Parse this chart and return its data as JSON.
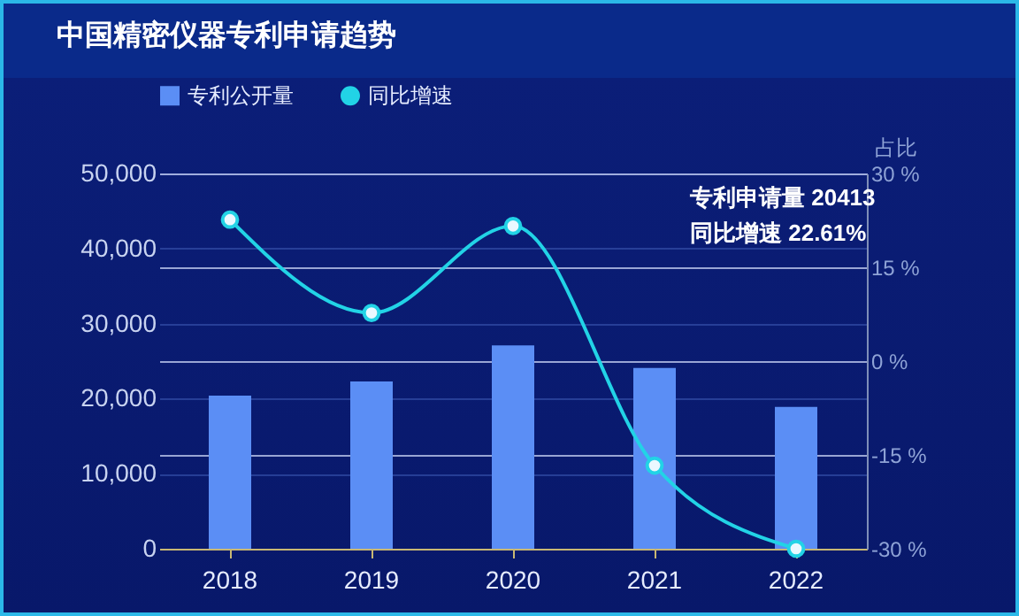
{
  "chart_data": {
    "type": "bar",
    "title": "中国精密仪器专利申请趋势",
    "categories": [
      "2018",
      "2019",
      "2020",
      "2021",
      "2022"
    ],
    "series": [
      {
        "name": "专利公开量",
        "color": "#5b8ef5",
        "values": [
          20413,
          22300,
          27100,
          24100,
          18900
        ]
      },
      {
        "name": "同比增速",
        "type": "line",
        "axis": "y2",
        "color": "#22d3e6",
        "values": [
          22.61,
          7.7,
          21.6,
          -16.7,
          -30
        ]
      }
    ],
    "ylim": [
      0,
      50000
    ],
    "yticks": [
      {
        "value": 0,
        "label": "0"
      },
      {
        "value": 10000,
        "label": "10,000"
      },
      {
        "value": 20000,
        "label": "20,000"
      },
      {
        "value": 30000,
        "label": "30,000"
      },
      {
        "value": 40000,
        "label": "40,000"
      },
      {
        "value": 50000,
        "label": "50,000"
      }
    ],
    "y2label": "占比",
    "y2lim": [
      -30,
      30
    ],
    "y2ticks": [
      {
        "value": -30,
        "label": "-30 %"
      },
      {
        "value": -15,
        "label": "-15 %"
      },
      {
        "value": 0,
        "label": "0 %"
      },
      {
        "value": 15,
        "label": "15 %"
      },
      {
        "value": 30,
        "label": "30 %"
      }
    ],
    "annotations": [
      "专利申请量 20413",
      "同比增速 22.61%"
    ],
    "grid": true,
    "legend": "top",
    "marker": "circle"
  }
}
